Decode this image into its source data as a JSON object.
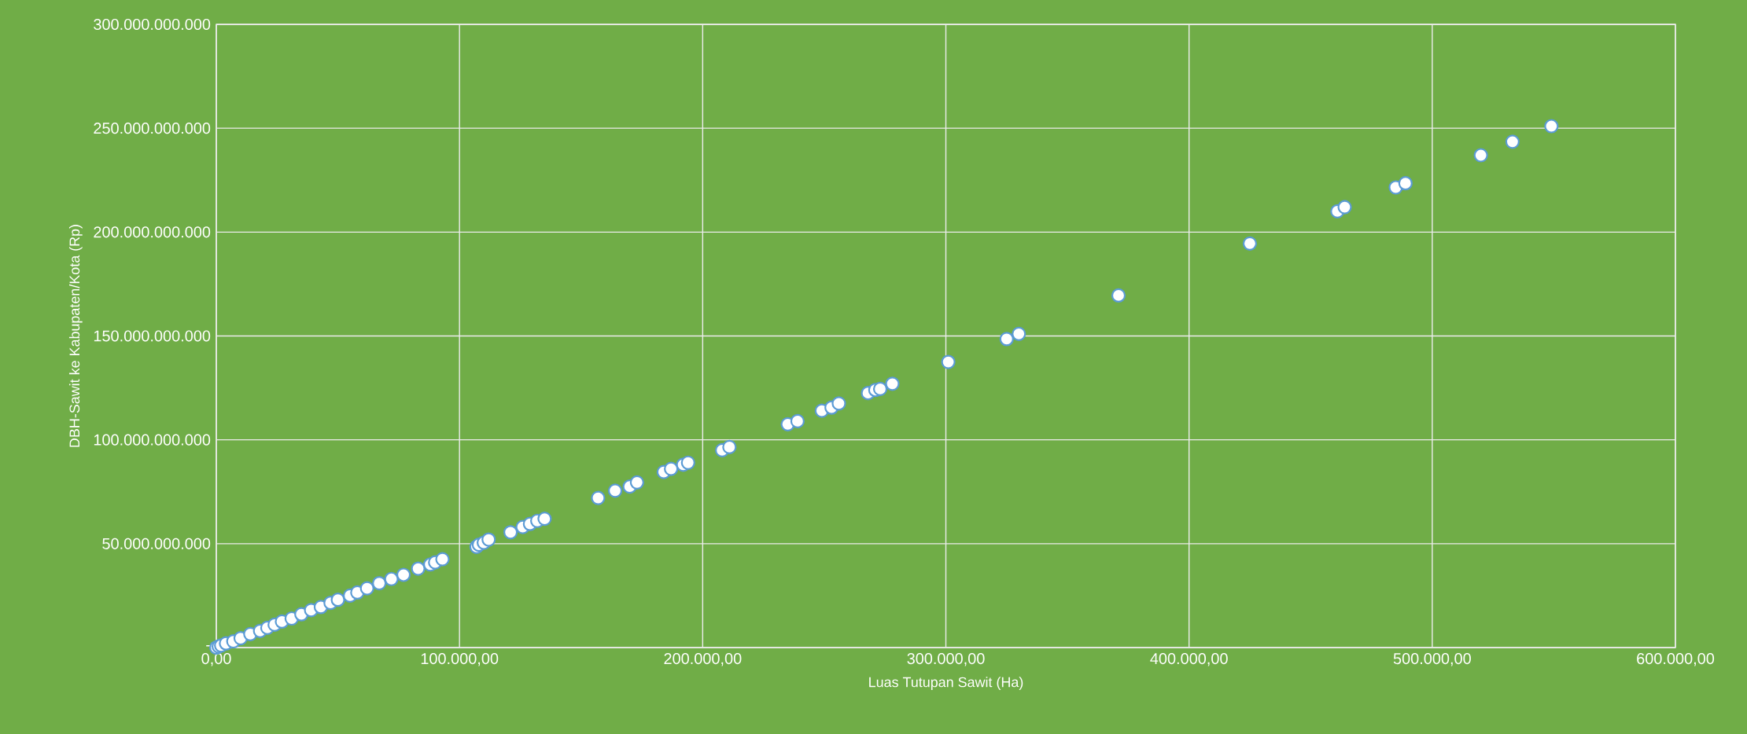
{
  "chart_data": {
    "type": "scatter",
    "xlabel": "Luas Tutupan Sawit (Ha)",
    "ylabel": "DBH-Sawit ke Kabupaten/Kota (Rp)",
    "x": [
      0,
      1000,
      2000,
      4000,
      7000,
      10000,
      14000,
      18000,
      21000,
      24000,
      27000,
      31000,
      35000,
      39000,
      43000,
      47000,
      50000,
      55000,
      58000,
      62000,
      67000,
      72000,
      77000,
      83000,
      88000,
      90000,
      93000,
      107000,
      108000,
      110000,
      112000,
      121000,
      126000,
      129000,
      132000,
      135000,
      157000,
      164000,
      170000,
      173000,
      184000,
      187000,
      192000,
      194000,
      208000,
      211000,
      235000,
      239000,
      249000,
      253000,
      256000,
      268000,
      271000,
      273000,
      278000,
      301000,
      325000,
      330000,
      371000,
      425000,
      461000,
      464000,
      485000,
      489000,
      520000,
      533000,
      549000
    ],
    "values": [
      0,
      500000000,
      1000000000,
      2000000000,
      3000000000,
      4500000000,
      6500000000,
      8000000000,
      9500000000,
      11000000000,
      12500000000,
      14000000000,
      16000000000,
      18000000000,
      19500000000,
      21500000000,
      23000000000,
      25000000000,
      26500000000,
      28500000000,
      31000000000,
      33000000000,
      35000000000,
      38000000000,
      40000000000,
      41000000000,
      42500000000,
      48500000000,
      49500000000,
      50500000000,
      52000000000,
      55500000000,
      58000000000,
      59500000000,
      61000000000,
      62000000000,
      72000000000,
      75500000000,
      77500000000,
      79500000000,
      84500000000,
      86000000000,
      88000000000,
      89000000000,
      95000000000,
      96500000000,
      107500000000,
      109000000000,
      114000000000,
      115500000000,
      117500000000,
      122500000000,
      124000000000,
      124500000000,
      127000000000,
      137500000000,
      148500000000,
      151000000000,
      169500000000,
      194500000000,
      210000000000,
      212000000000,
      221500000000,
      223500000000,
      237000000000,
      243500000000,
      251000000000
    ],
    "color": "#5b9bd5",
    "marker": "circle",
    "grid": true,
    "xlim": [
      0,
      600000
    ],
    "ylim": [
      0,
      300000000000
    ],
    "xticks": [
      {
        "value": 0,
        "label": "0,00"
      },
      {
        "value": 100000,
        "label": "100.000,00"
      },
      {
        "value": 200000,
        "label": "200.000,00"
      },
      {
        "value": 300000,
        "label": "300.000,00"
      },
      {
        "value": 400000,
        "label": "400.000,00"
      },
      {
        "value": 500000,
        "label": "500.000,00"
      },
      {
        "value": 600000,
        "label": "600.000,00"
      }
    ],
    "yticks": [
      {
        "value": 0,
        "label": "-"
      },
      {
        "value": 50000000000,
        "label": "50.000.000.000"
      },
      {
        "value": 100000000000,
        "label": "100.000.000.000"
      },
      {
        "value": 150000000000,
        "label": "150.000.000.000"
      },
      {
        "value": 200000000000,
        "label": "200.000.000.000"
      },
      {
        "value": 250000000000,
        "label": "250.000.000.000"
      },
      {
        "value": 300000000000,
        "label": "300.000.000.000"
      }
    ]
  }
}
